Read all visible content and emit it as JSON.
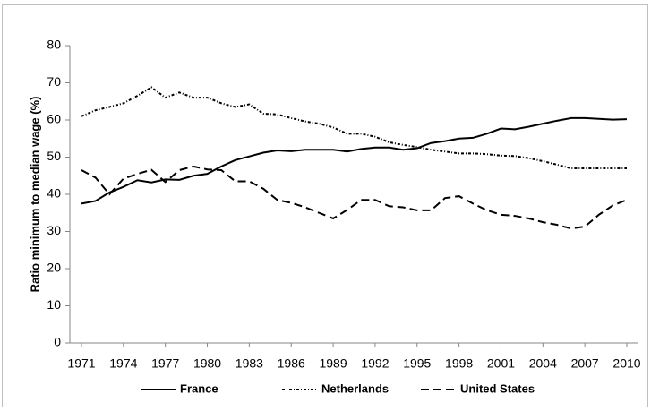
{
  "chart_data": {
    "type": "line",
    "y_label": "Ratio minimum to median wage (%)",
    "x": [
      1971,
      1972,
      1973,
      1974,
      1975,
      1976,
      1977,
      1978,
      1979,
      1980,
      1981,
      1982,
      1983,
      1984,
      1985,
      1986,
      1987,
      1988,
      1989,
      1990,
      1991,
      1992,
      1993,
      1994,
      1995,
      1996,
      1997,
      1998,
      1999,
      2000,
      2001,
      2002,
      2003,
      2004,
      2005,
      2006,
      2007,
      2008,
      2009,
      2010
    ],
    "xlim": [
      1971,
      2010
    ],
    "xticks": [
      1971,
      1974,
      1977,
      1980,
      1983,
      1986,
      1989,
      1992,
      1995,
      1998,
      2001,
      2004,
      2007,
      2010
    ],
    "ylim": [
      0,
      80
    ],
    "yticks": [
      0,
      10,
      20,
      30,
      40,
      50,
      60,
      70,
      80
    ],
    "grid": false,
    "legend": "bottom",
    "series": [
      {
        "name": "France",
        "color": "#000000",
        "dash": "solid",
        "values": [
          37.5,
          38.2,
          40.5,
          42,
          43.8,
          43.2,
          44,
          43.9,
          45,
          45.5,
          47.5,
          49.2,
          50.2,
          51.2,
          51.8,
          51.6,
          52,
          52,
          52,
          51.5,
          52.2,
          52.6,
          52.6,
          52,
          52.4,
          53.8,
          54.3,
          55,
          55.2,
          56.3,
          57.7,
          57.5,
          58.2,
          59,
          59.8,
          60.5,
          60.5,
          60.3,
          60.1,
          60.2
        ]
      },
      {
        "name": "Netherlands",
        "color": "#000000",
        "dash": "dash-dot-dot",
        "values": [
          61,
          62.6,
          63.5,
          64.5,
          66.5,
          68.8,
          66,
          67.4,
          66,
          66,
          64.5,
          63.5,
          64.2,
          61.7,
          61.5,
          60.5,
          59.6,
          59,
          58,
          56.3,
          56.3,
          55.5,
          54,
          53.3,
          52.7,
          52,
          51.5,
          51,
          51,
          50.8,
          50.4,
          50.3,
          49.7,
          48.9,
          48,
          47,
          47,
          47,
          47,
          47
        ]
      },
      {
        "name": "United States",
        "color": "#000000",
        "dash": "long-dash",
        "values": [
          46.5,
          44.5,
          40,
          44.2,
          45.5,
          46.6,
          43.3,
          46.5,
          47.5,
          46.7,
          46.5,
          43.5,
          43.5,
          41.5,
          38.5,
          37.7,
          36.5,
          35,
          33.5,
          35.8,
          38.5,
          38.5,
          36.8,
          36.5,
          35.7,
          35.7,
          39,
          39.5,
          37.5,
          35.7,
          34.5,
          34.2,
          33.5,
          32.5,
          31.8,
          30.8,
          31.3,
          34.5,
          37,
          38.5
        ]
      }
    ]
  }
}
